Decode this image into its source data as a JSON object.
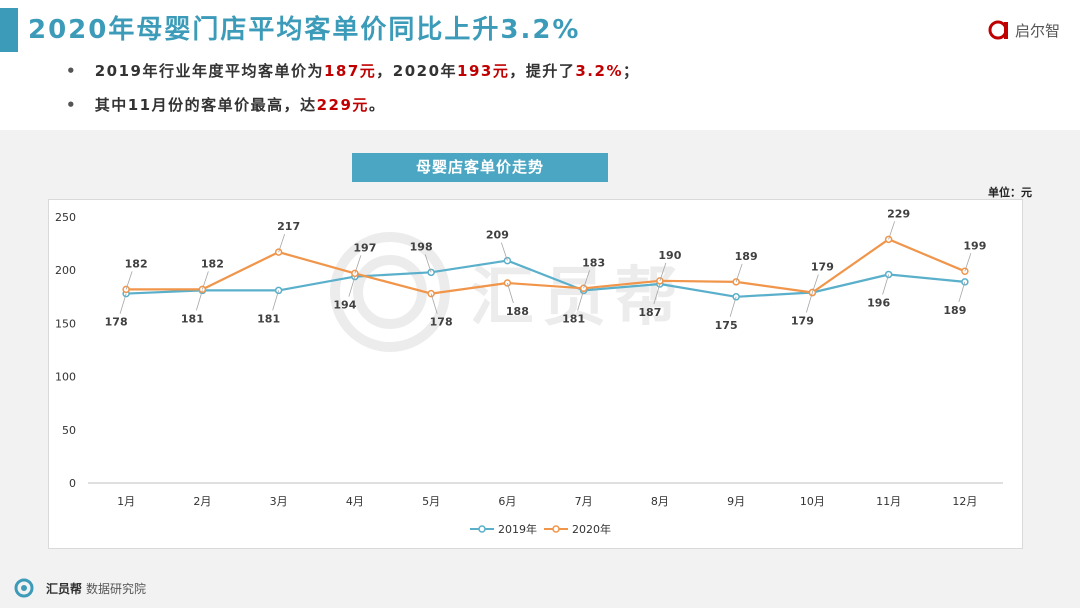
{
  "header": {
    "title": "2020年母婴门店平均客单价同比上升3.2%",
    "logo_text": "启尔智"
  },
  "summary": {
    "bullets": [
      {
        "parts": [
          "2019年行业年度平均客单价为",
          "187元",
          "，2020年",
          "193元",
          "，提升了",
          "3.2%",
          "；"
        ]
      },
      {
        "parts": [
          "其中11月份的客单价最高，达",
          "229元",
          "。"
        ]
      }
    ]
  },
  "chart_data": {
    "type": "line",
    "title": "母婴店客单价走势",
    "unit_label": "单位：元",
    "categories": [
      "1月",
      "2月",
      "3月",
      "4月",
      "5月",
      "6月",
      "7月",
      "8月",
      "9月",
      "10月",
      "11月",
      "12月"
    ],
    "series": [
      {
        "name": "2019年",
        "color": "#5aafcb",
        "values": [
          178,
          181,
          181,
          194,
          198,
          209,
          181,
          187,
          175,
          179,
          196,
          189
        ]
      },
      {
        "name": "2020年",
        "color": "#f0954a",
        "values": [
          182,
          182,
          217,
          197,
          178,
          188,
          183,
          190,
          189,
          179,
          229,
          199
        ]
      }
    ],
    "ylim": [
      0,
      250
    ],
    "yticks": [
      0,
      50,
      100,
      150,
      200,
      250
    ],
    "grid": false,
    "legend_position": "bottom-center"
  },
  "footer": {
    "brand": "汇员帮",
    "text": "数据研究院"
  }
}
